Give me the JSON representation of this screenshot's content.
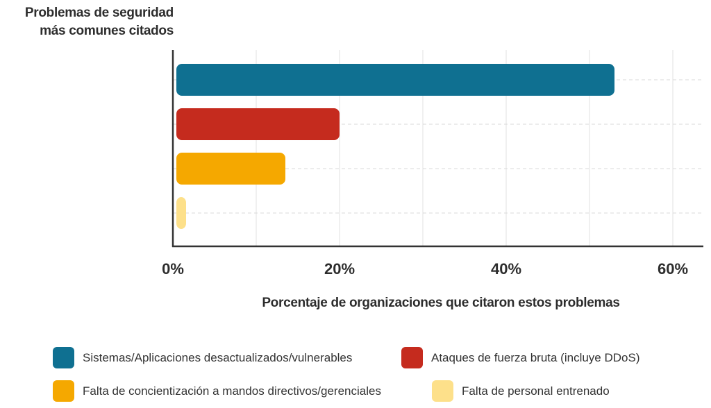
{
  "chart_data": {
    "type": "bar",
    "orientation": "horizontal",
    "title": "Problemas de seguridad más comunes citados",
    "ylabel_lines": [
      "Problemas de seguridad",
      "más comunes citados"
    ],
    "xlabel": "Porcentaje de organizaciones que citaron estos problemas",
    "categories": [
      "Sistemas/Aplicaciones desactualizados/vulnerables",
      "Ataques de fuerza bruta (incluye DDoS)",
      "Falta de concientización a mandos directivos/gerenciales",
      "Falta de personal entrenado"
    ],
    "values": [
      53,
      20,
      13.5,
      1.5
    ],
    "colors": [
      "#0f7091",
      "#c52b1e",
      "#f5a800",
      "#fde08a"
    ],
    "xlim": [
      0,
      64
    ],
    "xticks": [
      0,
      20,
      40,
      60
    ],
    "xtick_labels": [
      "0%",
      "20%",
      "40%",
      "60%"
    ],
    "grid": true,
    "legend_position": "bottom"
  }
}
